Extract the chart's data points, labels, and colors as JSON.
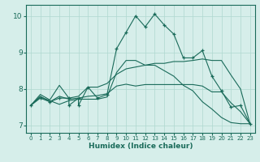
{
  "xlabel": "Humidex (Indice chaleur)",
  "bg_color": "#d6eeea",
  "grid_color": "#afd8d0",
  "line_color": "#1a6b5a",
  "xlim": [
    -0.5,
    23.5
  ],
  "ylim": [
    6.8,
    10.3
  ],
  "yticks": [
    7,
    8,
    9,
    10
  ],
  "xticks": [
    0,
    1,
    2,
    3,
    4,
    5,
    6,
    7,
    8,
    9,
    10,
    11,
    12,
    13,
    14,
    15,
    16,
    17,
    18,
    19,
    20,
    21,
    22,
    23
  ],
  "curve1_x": [
    0,
    1,
    2,
    3,
    4,
    4,
    5,
    5,
    6,
    7,
    8,
    9,
    10,
    11,
    12,
    13,
    14,
    15,
    16,
    17,
    18,
    19,
    20,
    21,
    22,
    23
  ],
  "curve1_y": [
    7.55,
    7.75,
    7.65,
    7.75,
    7.75,
    7.55,
    7.75,
    7.55,
    8.05,
    7.75,
    7.85,
    9.1,
    9.55,
    10.0,
    9.7,
    10.05,
    9.75,
    9.5,
    8.85,
    8.85,
    9.05,
    8.35,
    7.95,
    7.5,
    7.55,
    7.05
  ],
  "curve2_x": [
    0,
    1,
    2,
    3,
    4,
    5,
    6,
    7,
    8,
    9,
    10,
    11,
    12,
    13,
    14,
    15,
    16,
    17,
    18,
    19,
    20,
    21,
    22,
    23
  ],
  "curve2_y": [
    7.55,
    7.85,
    7.7,
    8.1,
    7.75,
    7.8,
    8.05,
    8.05,
    8.15,
    8.4,
    8.55,
    8.6,
    8.65,
    8.7,
    8.7,
    8.75,
    8.75,
    8.78,
    8.82,
    8.78,
    8.78,
    8.38,
    8.0,
    7.05
  ],
  "curve3_x": [
    0,
    1,
    2,
    3,
    4,
    5,
    6,
    7,
    8,
    9,
    10,
    11,
    12,
    13,
    14,
    15,
    16,
    17,
    18,
    19,
    20,
    21,
    22,
    23
  ],
  "curve3_y": [
    7.55,
    7.8,
    7.65,
    7.8,
    7.72,
    7.75,
    7.8,
    7.82,
    7.87,
    8.08,
    8.13,
    8.08,
    8.12,
    8.12,
    8.12,
    8.12,
    8.12,
    8.12,
    8.08,
    7.92,
    7.92,
    7.62,
    7.38,
    7.05
  ],
  "curve4_x": [
    0,
    1,
    2,
    3,
    4,
    5,
    6,
    7,
    8,
    9,
    10,
    11,
    12,
    13,
    14,
    15,
    16,
    17,
    18,
    19,
    20,
    21,
    22,
    23
  ],
  "curve4_y": [
    7.55,
    7.78,
    7.68,
    7.58,
    7.68,
    7.72,
    7.72,
    7.72,
    7.78,
    8.45,
    8.78,
    8.78,
    8.65,
    8.65,
    8.5,
    8.35,
    8.1,
    7.95,
    7.65,
    7.45,
    7.22,
    7.08,
    7.05,
    7.05
  ]
}
